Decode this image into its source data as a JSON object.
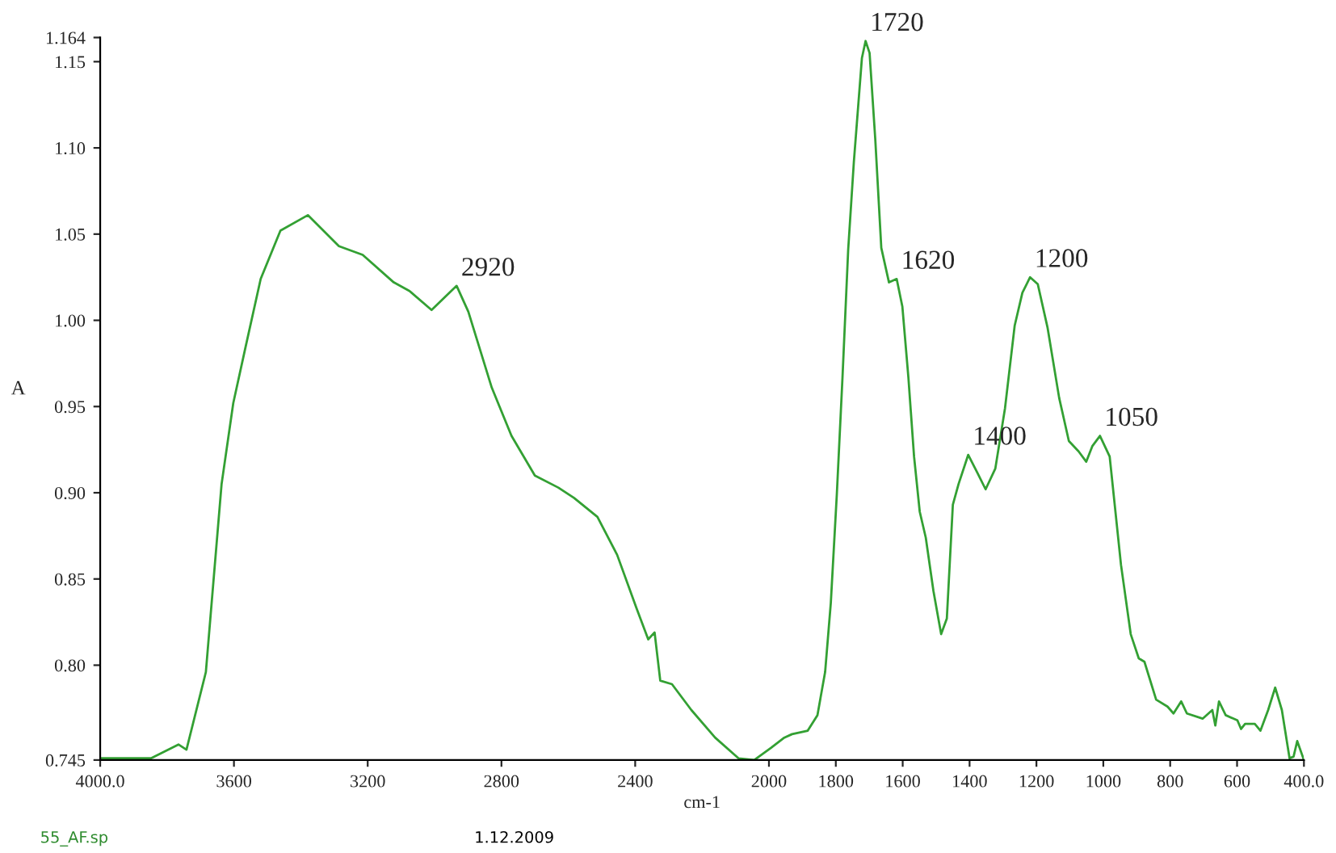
{
  "chart_data": {
    "type": "line",
    "xlabel": "cm-1",
    "ylabel": "A",
    "xlim": [
      4000,
      400
    ],
    "ylim": [
      0.745,
      1.164
    ],
    "xticks": [
      {
        "value": 4000,
        "label": "4000.0"
      },
      3600,
      3200,
      2800,
      2400,
      2000,
      1800,
      1600,
      1400,
      1200,
      1000,
      800,
      600,
      {
        "value": 400,
        "label": "400.0"
      }
    ],
    "yticks": [
      0.745,
      {
        "value": 0.8,
        "label": "0.80"
      },
      0.85,
      {
        "value": 0.9,
        "label": "0.90"
      },
      0.95,
      {
        "value": 1.0,
        "label": "1.00"
      },
      1.05,
      {
        "value": 1.1,
        "label": "1.10"
      },
      1.15,
      1.164
    ],
    "grid": false,
    "legend": false,
    "marker": "none",
    "line_style": "solid",
    "series": [
      {
        "color": "#33a033",
        "x": [
          4000,
          3848,
          3766,
          3742,
          3684,
          3637,
          3602,
          3567,
          3520,
          3461,
          3379,
          3286,
          3215,
          3122,
          3075,
          3009,
          2934,
          2899,
          2864,
          2829,
          2770,
          2700,
          2630,
          2583,
          2513,
          2454,
          2396,
          2361,
          2342,
          2325,
          2290,
          2232,
          2161,
          2091,
          2044,
          1994,
          1954,
          1931,
          1884,
          1855,
          1832,
          1815,
          1797,
          1780,
          1763,
          1746,
          1722,
          1711,
          1699,
          1682,
          1664,
          1641,
          1618,
          1601,
          1583,
          1566,
          1549,
          1531,
          1508,
          1485,
          1468,
          1450,
          1433,
          1404,
          1375,
          1352,
          1323,
          1294,
          1265,
          1242,
          1219,
          1196,
          1167,
          1132,
          1103,
          1074,
          1051,
          1033,
          1010,
          981,
          947,
          918,
          894,
          877,
          842,
          808,
          790,
          767,
          750,
          703,
          674,
          665,
          654,
          634,
          599,
          588,
          576,
          547,
          530,
          507,
          486,
          466,
          443,
          431,
          420,
          400
        ],
        "values": [
          0.746,
          0.746,
          0.754,
          0.751,
          0.796,
          0.905,
          0.952,
          0.983,
          1.024,
          1.052,
          1.061,
          1.043,
          1.038,
          1.022,
          1.017,
          1.006,
          1.02,
          1.005,
          0.983,
          0.961,
          0.933,
          0.91,
          0.903,
          0.897,
          0.886,
          0.864,
          0.833,
          0.815,
          0.819,
          0.791,
          0.789,
          0.774,
          0.758,
          0.746,
          0.745,
          0.752,
          0.758,
          0.76,
          0.762,
          0.771,
          0.796,
          0.836,
          0.899,
          0.967,
          1.041,
          1.092,
          1.152,
          1.162,
          1.155,
          1.105,
          1.042,
          1.022,
          1.024,
          1.008,
          0.967,
          0.921,
          0.889,
          0.874,
          0.843,
          0.818,
          0.827,
          0.893,
          0.905,
          0.922,
          0.911,
          0.902,
          0.914,
          0.949,
          0.997,
          1.016,
          1.025,
          1.021,
          0.996,
          0.955,
          0.93,
          0.924,
          0.918,
          0.927,
          0.933,
          0.921,
          0.858,
          0.818,
          0.804,
          0.802,
          0.78,
          0.776,
          0.772,
          0.779,
          0.772,
          0.769,
          0.774,
          0.765,
          0.779,
          0.771,
          0.768,
          0.763,
          0.766,
          0.766,
          0.762,
          0.774,
          0.787,
          0.774,
          0.746,
          0.747,
          0.756,
          0.745
        ]
      }
    ],
    "annotations": [
      {
        "text": "2920",
        "x": 2934,
        "y": 1.02
      },
      {
        "text": "1720",
        "x": 1711,
        "y": 1.162
      },
      {
        "text": "1620",
        "x": 1618,
        "y": 1.024
      },
      {
        "text": "1400",
        "x": 1404,
        "y": 0.922
      },
      {
        "text": "1200",
        "x": 1219,
        "y": 1.025
      },
      {
        "text": "1050",
        "x": 1010,
        "y": 0.933
      },
      "55_AF.sp",
      "1.12.2009"
    ]
  }
}
